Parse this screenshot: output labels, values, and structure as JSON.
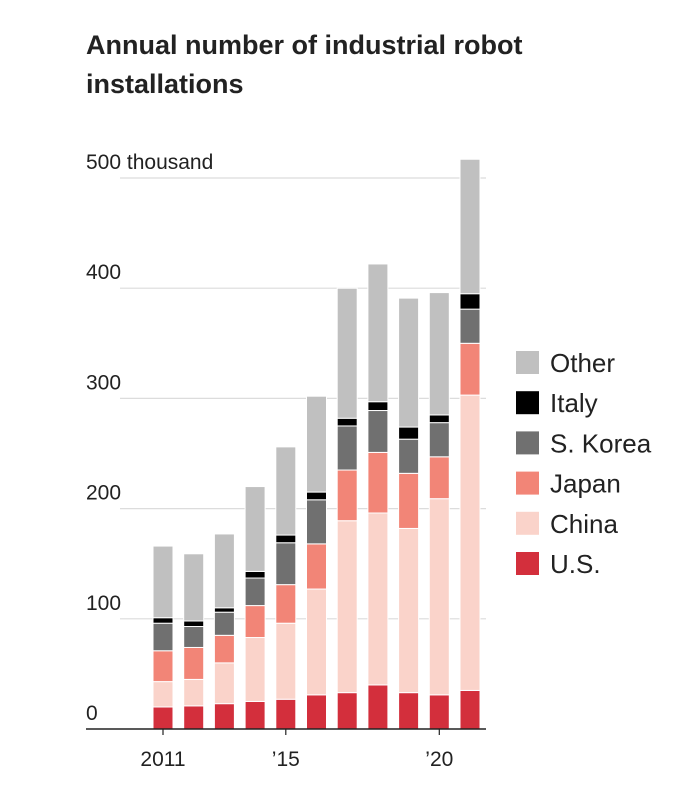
{
  "chart_data": {
    "type": "bar",
    "stacked": true,
    "title": "Annual number of industrial robot installations",
    "unit": "thousand",
    "years": [
      2011,
      2012,
      2013,
      2014,
      2015,
      2016,
      2017,
      2018,
      2019,
      2020,
      2021
    ],
    "x_tick_labels": [
      {
        "year": 2011,
        "label": "2011"
      },
      {
        "year": 2015,
        "label": "’15"
      },
      {
        "year": 2020,
        "label": "’20"
      }
    ],
    "y_ticks": [
      {
        "value": 0,
        "label": "0"
      },
      {
        "value": 100,
        "label": "100"
      },
      {
        "value": 200,
        "label": "200"
      },
      {
        "value": 300,
        "label": "300"
      },
      {
        "value": 400,
        "label": "400"
      },
      {
        "value": 500,
        "label": "500 thousand"
      }
    ],
    "ylim": [
      0,
      500
    ],
    "grid": true,
    "legend_position": "right",
    "series": [
      {
        "name": "U.S.",
        "color": "#d32f3c",
        "values": [
          20,
          21,
          23,
          25,
          27,
          31,
          33,
          40,
          33,
          31,
          35
        ]
      },
      {
        "name": "China",
        "color": "#fad3ca",
        "values": [
          23,
          24,
          37,
          58,
          69,
          96,
          156,
          156,
          149,
          178,
          268
        ]
      },
      {
        "name": "Japan",
        "color": "#f28577",
        "values": [
          28,
          29,
          25,
          29,
          35,
          41,
          46,
          55,
          50,
          38,
          47
        ]
      },
      {
        "name": "S. Korea",
        "color": "#707070",
        "values": [
          25,
          19,
          21,
          25,
          38,
          40,
          40,
          38,
          31,
          31,
          31
        ]
      },
      {
        "name": "Italy",
        "color": "#000000",
        "values": [
          5,
          5,
          4,
          6,
          7,
          7,
          7,
          8,
          11,
          7,
          14
        ]
      },
      {
        "name": "Other",
        "color": "#c0c0c0",
        "values": [
          65,
          61,
          67,
          77,
          80,
          87,
          118,
          125,
          117,
          111,
          122
        ]
      }
    ]
  }
}
